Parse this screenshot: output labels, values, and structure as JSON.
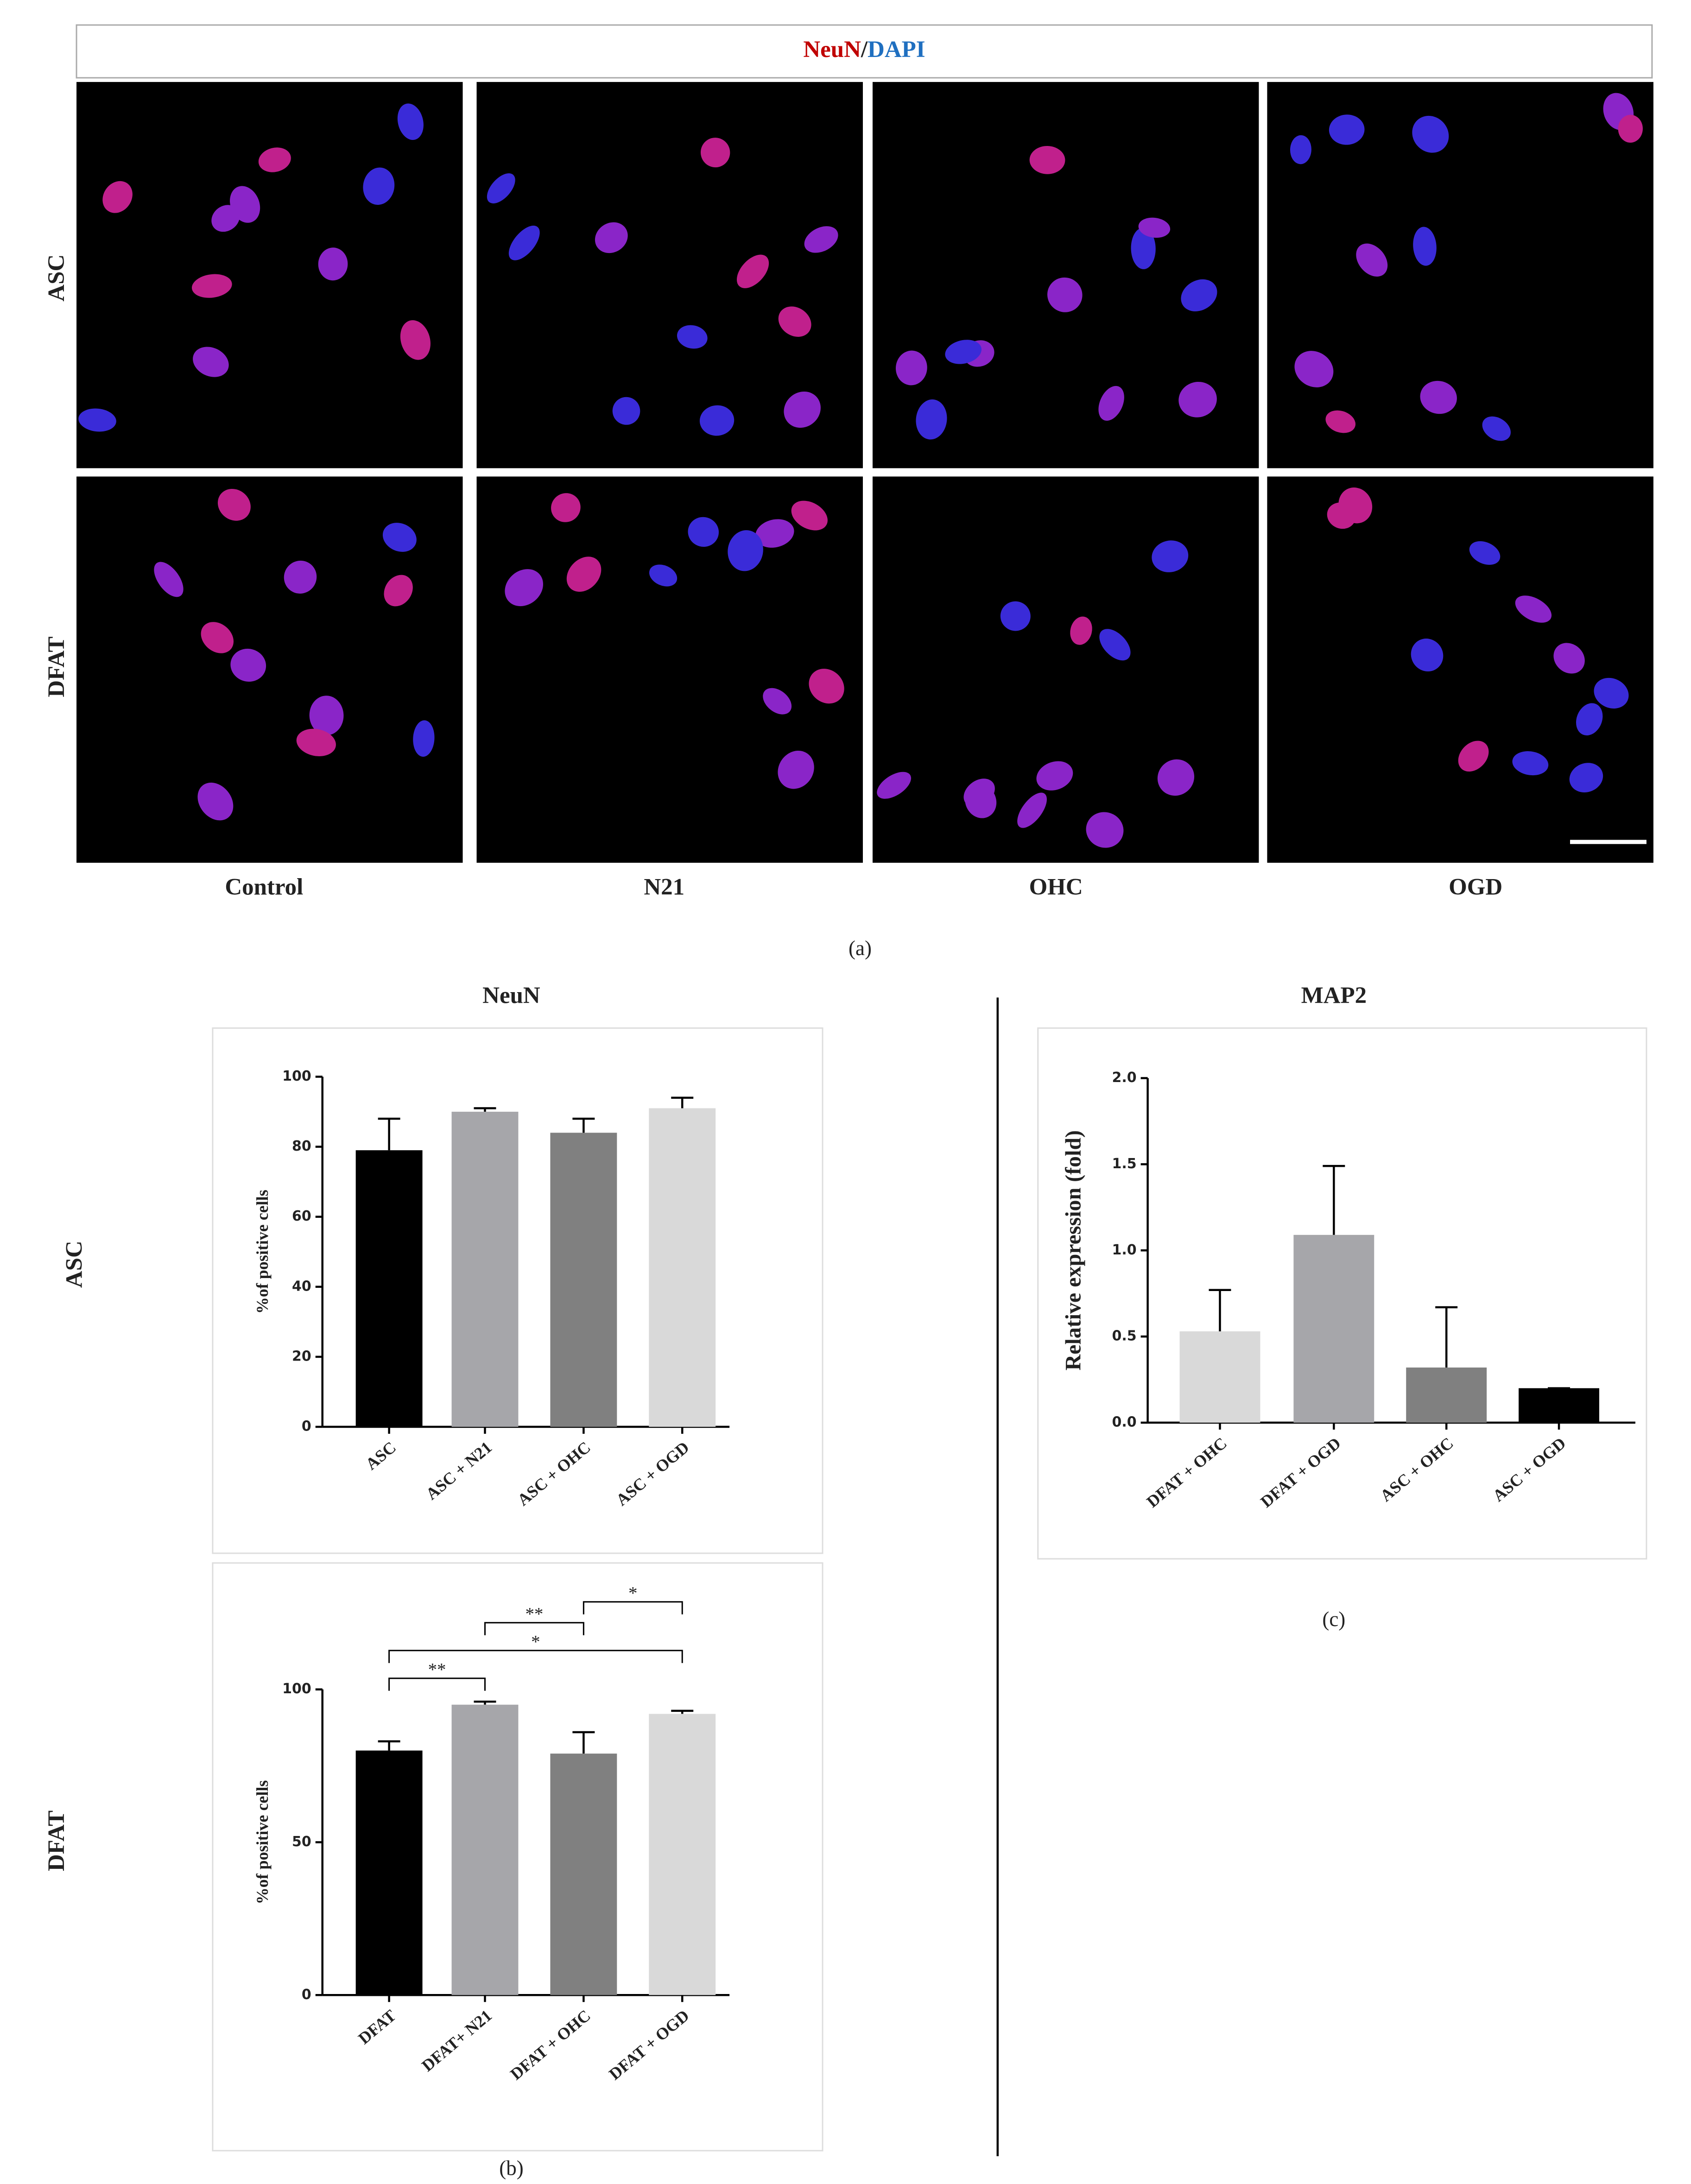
{
  "figure_a": {
    "stain_1": "NeuN",
    "separator": "/",
    "stain_2": "DAPI",
    "rows": [
      "ASC",
      "DFAT"
    ],
    "columns": [
      "Control",
      "N21",
      "OHC",
      "OGD"
    ],
    "label": "(a)"
  },
  "chart_data": [
    {
      "type": "bar",
      "title": "NeuN",
      "row_label": "ASC",
      "ylabel": "%of positive cells",
      "categories": [
        "ASC",
        "ASC + N21",
        "ASC + OHC",
        "ASC + OGD"
      ],
      "values": [
        79,
        90,
        84,
        91
      ],
      "errors": [
        9,
        1,
        4,
        3
      ],
      "colors": [
        "#000000",
        "#a6a6aa",
        "#808080",
        "#d9d9d9"
      ],
      "ylim": [
        0,
        100
      ],
      "yticks": [
        0,
        20,
        40,
        60,
        80,
        100
      ]
    },
    {
      "type": "bar",
      "row_label": "DFAT",
      "ylabel": "%of positive cells",
      "panel_label": "(b)",
      "categories": [
        "DFAT",
        "DFAT+ N21",
        "DFAT + OHC",
        "DFAT + OGD"
      ],
      "values": [
        80,
        95,
        79,
        92
      ],
      "errors": [
        3,
        1,
        7,
        1
      ],
      "colors": [
        "#000000",
        "#a6a6aa",
        "#808080",
        "#d9d9d9"
      ],
      "ylim": [
        0,
        100
      ],
      "yticks": [
        0,
        50,
        100
      ],
      "significance": [
        {
          "groups": [
            "DFAT",
            "DFAT+ N21"
          ],
          "label": "**"
        },
        {
          "groups": [
            "DFAT",
            "DFAT + OGD"
          ],
          "label": "*"
        },
        {
          "groups": [
            "DFAT+ N21",
            "DFAT + OHC"
          ],
          "label": "**"
        },
        {
          "groups": [
            "DFAT + OHC",
            "DFAT + OGD"
          ],
          "label": "*"
        }
      ]
    },
    {
      "type": "bar",
      "title": "MAP2",
      "ylabel": "Relative expression (fold)",
      "panel_label": "(c)",
      "categories": [
        "DFAT + OHC",
        "DFAT + OGD",
        "ASC + OHC",
        "ASC + OGD"
      ],
      "values": [
        0.53,
        1.09,
        0.32,
        0.2
      ],
      "errors": [
        0.24,
        0.4,
        0.35,
        0
      ],
      "colors": [
        "#d9d9d9",
        "#a6a6aa",
        "#808080",
        "#000000"
      ],
      "ylim": [
        0,
        2
      ],
      "yticks": [
        {
          "value": 0,
          "label": "0.0"
        },
        0.5,
        {
          "value": 1,
          "label": "1.0"
        },
        1.5,
        {
          "value": 2,
          "label": "2.0"
        }
      ]
    }
  ]
}
